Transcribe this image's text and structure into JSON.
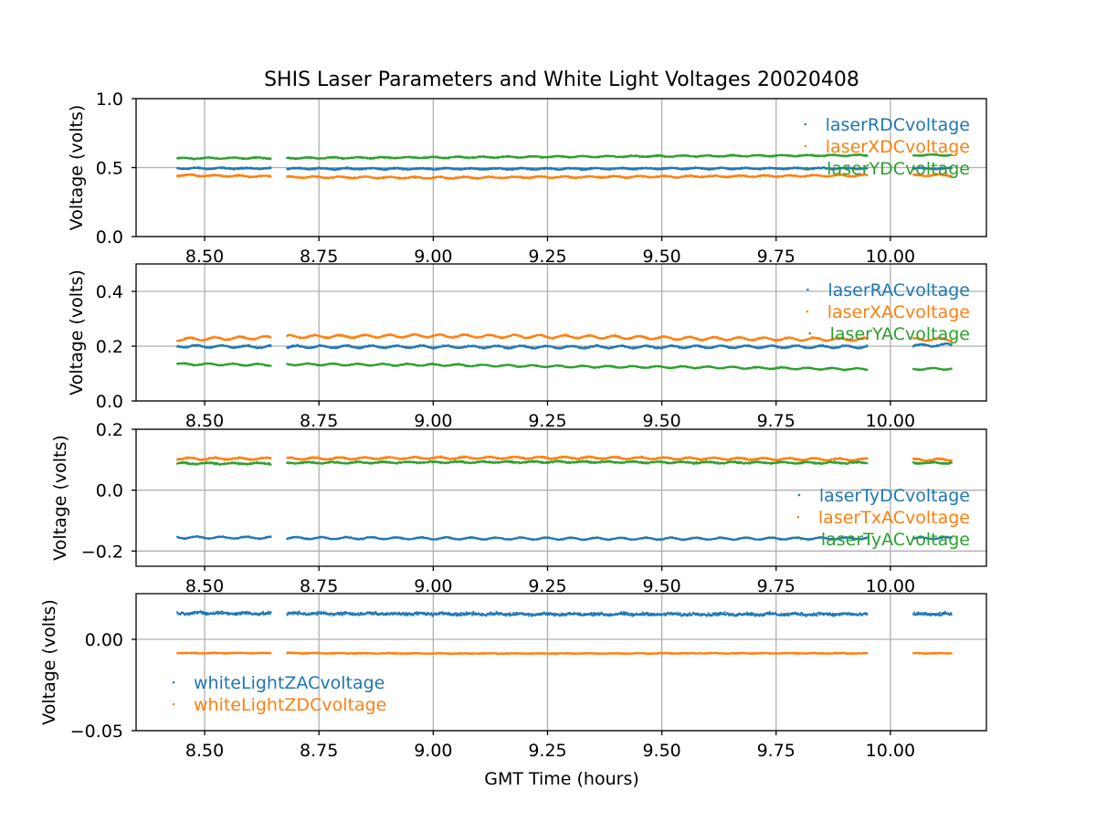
{
  "chart_data": {
    "type": "scatter",
    "title": "SHIS Laser Parameters and White Light Voltages 20020408",
    "xlabel": "GMT Time (hours)",
    "xlim": [
      8.35,
      10.21
    ],
    "x_ticks": [
      8.5,
      8.75,
      9.0,
      9.25,
      9.5,
      9.75,
      10.0
    ],
    "x_tick_labels": [
      "8.50",
      "8.75",
      "9.00",
      "9.25",
      "9.50",
      "9.75",
      "10.00"
    ],
    "data_segments": [
      [
        8.44,
        8.645
      ],
      [
        8.68,
        9.95
      ],
      [
        10.05,
        10.135
      ]
    ],
    "grid": true,
    "panels": [
      {
        "ylabel": "Voltage (volts)",
        "ylim": [
          0.0,
          1.0
        ],
        "y_ticks": [
          0.0,
          0.5,
          1.0
        ],
        "y_tick_labels": [
          "0.0",
          "0.5",
          "1.0"
        ],
        "legend": "top-right",
        "series": [
          {
            "name": "laserRDCvoltage",
            "color": "#1f77b4",
            "points": [
              [
                8.44,
                0.495
              ],
              [
                8.64,
                0.495
              ],
              [
                8.68,
                0.493
              ],
              [
                9.0,
                0.492
              ],
              [
                9.3,
                0.492
              ],
              [
                9.6,
                0.494
              ],
              [
                9.95,
                0.495
              ],
              [
                10.13,
                0.495
              ]
            ],
            "noise": 0.006,
            "wave": 0.004
          },
          {
            "name": "laserXDCvoltage",
            "color": "#ff7f0e",
            "points": [
              [
                8.44,
                0.445
              ],
              [
                8.64,
                0.437
              ],
              [
                8.68,
                0.432
              ],
              [
                9.0,
                0.427
              ],
              [
                9.3,
                0.432
              ],
              [
                9.6,
                0.437
              ],
              [
                9.95,
                0.443
              ],
              [
                10.13,
                0.445
              ]
            ],
            "noise": 0.006,
            "wave": 0.005
          },
          {
            "name": "laserYDCvoltage",
            "color": "#2ca02c",
            "points": [
              [
                8.44,
                0.568
              ],
              [
                8.64,
                0.57
              ],
              [
                8.68,
                0.57
              ],
              [
                9.0,
                0.574
              ],
              [
                9.3,
                0.58
              ],
              [
                9.6,
                0.585
              ],
              [
                9.95,
                0.59
              ],
              [
                10.13,
                0.592
              ]
            ],
            "noise": 0.005,
            "wave": 0.004
          }
        ]
      },
      {
        "ylabel": "Voltage (volts)",
        "ylim": [
          0.0,
          0.5
        ],
        "y_ticks": [
          0.0,
          0.2,
          0.4
        ],
        "y_tick_labels": [
          "0.0",
          "0.2",
          "0.4"
        ],
        "legend": "top-right",
        "series": [
          {
            "name": "laserRACvoltage",
            "color": "#1f77b4",
            "points": [
              [
                8.44,
                0.2
              ],
              [
                8.64,
                0.198
              ],
              [
                8.68,
                0.198
              ],
              [
                9.0,
                0.198
              ],
              [
                9.3,
                0.197
              ],
              [
                9.6,
                0.198
              ],
              [
                9.95,
                0.198
              ],
              [
                10.13,
                0.205
              ]
            ],
            "noise": 0.003,
            "wave": 0.004
          },
          {
            "name": "laserXACvoltage",
            "color": "#ff7f0e",
            "points": [
              [
                8.44,
                0.225
              ],
              [
                8.64,
                0.232
              ],
              [
                8.68,
                0.235
              ],
              [
                9.0,
                0.238
              ],
              [
                9.3,
                0.235
              ],
              [
                9.6,
                0.228
              ],
              [
                9.95,
                0.225
              ],
              [
                10.13,
                0.225
              ]
            ],
            "noise": 0.003,
            "wave": 0.005
          },
          {
            "name": "laserYACvoltage",
            "color": "#2ca02c",
            "points": [
              [
                8.44,
                0.135
              ],
              [
                8.64,
                0.132
              ],
              [
                8.68,
                0.134
              ],
              [
                9.0,
                0.132
              ],
              [
                9.3,
                0.126
              ],
              [
                9.6,
                0.123
              ],
              [
                9.95,
                0.116
              ],
              [
                10.13,
                0.118
              ]
            ],
            "noise": 0.002,
            "wave": 0.003
          }
        ]
      },
      {
        "ylabel": "Voltage (volts)",
        "ylim": [
          -0.25,
          0.2
        ],
        "y_ticks": [
          -0.2,
          0.0,
          0.2
        ],
        "y_tick_labels": [
          "−0.2",
          "0.0",
          "0.2"
        ],
        "legend": "center-right",
        "series": [
          {
            "name": "laserTyDCvoltage",
            "color": "#1f77b4",
            "points": [
              [
                8.44,
                -0.155
              ],
              [
                8.64,
                -0.156
              ],
              [
                8.68,
                -0.157
              ],
              [
                9.0,
                -0.158
              ],
              [
                9.3,
                -0.159
              ],
              [
                9.6,
                -0.159
              ],
              [
                9.95,
                -0.158
              ],
              [
                10.13,
                -0.157
              ]
            ],
            "noise": 0.002,
            "wave": 0.003
          },
          {
            "name": "laserTxACvoltage",
            "color": "#ff7f0e",
            "points": [
              [
                8.44,
                0.104
              ],
              [
                8.64,
                0.104
              ],
              [
                8.68,
                0.104
              ],
              [
                9.0,
                0.106
              ],
              [
                9.3,
                0.107
              ],
              [
                9.6,
                0.104
              ],
              [
                9.95,
                0.101
              ],
              [
                10.13,
                0.1
              ]
            ],
            "noise": 0.003,
            "wave": 0.003
          },
          {
            "name": "laserTyACvoltage",
            "color": "#2ca02c",
            "points": [
              [
                8.44,
                0.088
              ],
              [
                8.64,
                0.088
              ],
              [
                8.68,
                0.09
              ],
              [
                9.0,
                0.092
              ],
              [
                9.3,
                0.093
              ],
              [
                9.6,
                0.091
              ],
              [
                9.95,
                0.09
              ],
              [
                10.13,
                0.09
              ]
            ],
            "noise": 0.003,
            "wave": 0.002
          }
        ]
      },
      {
        "ylabel": "Voltage (volts)",
        "ylim": [
          -0.05,
          0.025
        ],
        "y_ticks": [
          -0.05,
          0.0
        ],
        "y_tick_labels": [
          "−0.05",
          "0.00"
        ],
        "legend": "lower-left",
        "series": [
          {
            "name": "whiteLightZACvoltage",
            "color": "#1f77b4",
            "points": [
              [
                8.44,
                0.0145
              ],
              [
                8.64,
                0.0142
              ],
              [
                8.68,
                0.0142
              ],
              [
                9.0,
                0.014
              ],
              [
                9.3,
                0.0138
              ],
              [
                9.6,
                0.0138
              ],
              [
                9.95,
                0.0138
              ],
              [
                10.13,
                0.0138
              ]
            ],
            "noise": 0.0011,
            "wave": 0.0003
          },
          {
            "name": "whiteLightZDCvoltage",
            "color": "#ff7f0e",
            "points": [
              [
                8.44,
                -0.0075
              ],
              [
                8.64,
                -0.0075
              ],
              [
                8.68,
                -0.0075
              ],
              [
                9.0,
                -0.0077
              ],
              [
                9.3,
                -0.0077
              ],
              [
                9.6,
                -0.0076
              ],
              [
                9.95,
                -0.0076
              ],
              [
                10.13,
                -0.0076
              ]
            ],
            "noise": 0.0003,
            "wave": 0.0001
          }
        ]
      }
    ]
  }
}
